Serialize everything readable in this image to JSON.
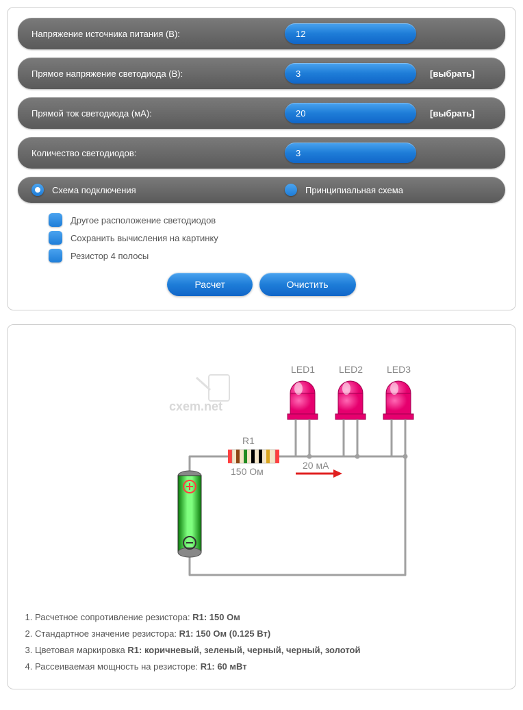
{
  "form": {
    "rows": [
      {
        "label": "Напряжение источника питания (В):",
        "value": "12",
        "choose": null
      },
      {
        "label": "Прямое напряжение светодиода (В):",
        "value": "3",
        "choose": "[выбрать]"
      },
      {
        "label": "Прямой ток светодиода (мА):",
        "value": "20",
        "choose": "[выбрать]"
      },
      {
        "label": "Количество светодиодов:",
        "value": "3",
        "choose": null
      }
    ],
    "radios": [
      {
        "label": "Схема подключения",
        "selected": true
      },
      {
        "label": "Принципиальная схема",
        "selected": false
      }
    ],
    "checkboxes": [
      "Другое расположение светодиодов",
      "Сохранить вычисления на картинку",
      "Резистор 4 полосы"
    ],
    "buttons": {
      "calc": "Расчет",
      "clear": "Очистить"
    }
  },
  "diagram": {
    "watermark": "cxem.net",
    "leds": [
      "LED1",
      "LED2",
      "LED3"
    ],
    "led_color": "#e6006e",
    "led_highlight": "#ff69b4",
    "resistor_label": "R1",
    "resistor_value": "150 Ом",
    "resistor_bands": [
      "#8b4513",
      "#228b22",
      "#000000",
      "#000000",
      "#daa520"
    ],
    "resistor_body": "#f5e6c8",
    "resistor_end": "#ff4040",
    "current_label": "20 мА",
    "arrow_color": "#e02020",
    "wire_color": "#a0a0a0",
    "battery_body": "#2ecc40",
    "battery_body_light": "#7fff7f",
    "battery_cap": "#888888",
    "label_color": "#888888"
  },
  "results": [
    {
      "prefix": "Расчетное сопротивление резистора: ",
      "bold": "R1: 150 Ом"
    },
    {
      "prefix": "Стандартное значение резистора: ",
      "bold": "R1: 150 Ом (0.125 Вт)"
    },
    {
      "prefix": "Цветовая маркировка ",
      "bold": "R1: коричневый, зеленый, черный, черный, золотой"
    },
    {
      "prefix": "Рассеиваемая мощность на резисторе: ",
      "bold": "R1: 60 мВт"
    }
  ]
}
